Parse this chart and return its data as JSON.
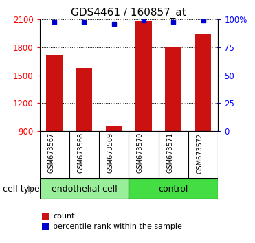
{
  "title": "GDS4461 / 160857_at",
  "samples": [
    "GSM673567",
    "GSM673568",
    "GSM673569",
    "GSM673570",
    "GSM673571",
    "GSM673572"
  ],
  "counts": [
    1720,
    1580,
    950,
    2080,
    1810,
    1940
  ],
  "percentile_ranks": [
    98,
    98,
    96,
    99,
    98,
    99
  ],
  "ylim_left": [
    900,
    2100
  ],
  "ylim_right": [
    0,
    100
  ],
  "yticks_left": [
    900,
    1200,
    1500,
    1800,
    2100
  ],
  "yticks_right": [
    0,
    25,
    50,
    75,
    100
  ],
  "groups": [
    {
      "label": "endothelial cell",
      "indices": [
        0,
        1,
        2
      ],
      "color": "#99ee99"
    },
    {
      "label": "control",
      "indices": [
        3,
        4,
        5
      ],
      "color": "#44dd44"
    }
  ],
  "bar_color": "#cc1111",
  "blue_color": "#0000cc",
  "bar_width": 0.55,
  "background_tick_area": "#c8c8c8",
  "cell_type_label": "cell type",
  "legend_count_label": "count",
  "legend_percentile_label": "percentile rank within the sample",
  "title_fontsize": 11,
  "tick_fontsize": 8.5,
  "sample_fontsize": 7,
  "legend_fontsize": 8,
  "group_fontsize": 9
}
